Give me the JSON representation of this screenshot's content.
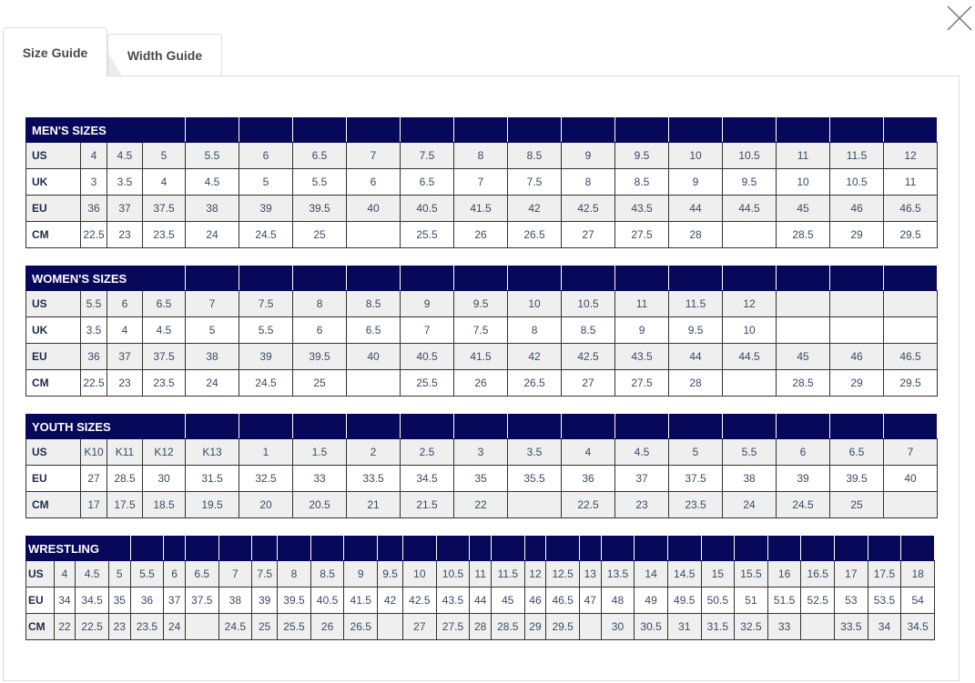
{
  "tabs": [
    {
      "label": "Size Guide",
      "active": true
    },
    {
      "label": "Width Guide",
      "active": false
    }
  ],
  "colors": {
    "header": "#07085a",
    "row_alt": "#efefef"
  },
  "icons": {
    "close": "close-icon"
  },
  "tables": [
    {
      "id": "mens",
      "title": "MEN'S SIZES",
      "rows": [
        {
          "label": "US",
          "values": [
            "4",
            "4.5",
            "5",
            "5.5",
            "6",
            "6.5",
            "7",
            "7.5",
            "8",
            "8.5",
            "9",
            "9.5",
            "10",
            "10.5",
            "11",
            "11.5",
            "12"
          ]
        },
        {
          "label": "UK",
          "values": [
            "3",
            "3.5",
            "4",
            "4.5",
            "5",
            "5.5",
            "6",
            "6.5",
            "7",
            "7.5",
            "8",
            "8.5",
            "9",
            "9.5",
            "10",
            "10.5",
            "11"
          ]
        },
        {
          "label": "EU",
          "values": [
            "36",
            "37",
            "37.5",
            "38",
            "39",
            "39.5",
            "40",
            "40.5",
            "41.5",
            "42",
            "42.5",
            "43.5",
            "44",
            "44.5",
            "45",
            "46",
            "46.5"
          ]
        },
        {
          "label": "CM",
          "values": [
            "22.5",
            "23",
            "23.5",
            "24",
            "24.5",
            "25",
            "",
            "25.5",
            "26",
            "26.5",
            "27",
            "27.5",
            "28",
            "",
            "28.5",
            "29",
            "29.5"
          ]
        }
      ]
    },
    {
      "id": "womens",
      "title": "WOMEN'S SIZES",
      "rows": [
        {
          "label": "US",
          "values": [
            "5.5",
            "6",
            "6.5",
            "7",
            "7.5",
            "8",
            "8.5",
            "9",
            "9.5",
            "10",
            "10.5",
            "11",
            "11.5",
            "12",
            "",
            "",
            ""
          ]
        },
        {
          "label": "UK",
          "values": [
            "3.5",
            "4",
            "4.5",
            "5",
            "5.5",
            "6",
            "6.5",
            "7",
            "7.5",
            "8",
            "8.5",
            "9",
            "9.5",
            "10",
            "",
            "",
            ""
          ]
        },
        {
          "label": "EU",
          "values": [
            "36",
            "37",
            "37.5",
            "38",
            "39",
            "39.5",
            "40",
            "40.5",
            "41.5",
            "42",
            "42.5",
            "43.5",
            "44",
            "44.5",
            "45",
            "46",
            "46.5"
          ]
        },
        {
          "label": "CM",
          "values": [
            "22.5",
            "23",
            "23.5",
            "24",
            "24.5",
            "25",
            "",
            "25.5",
            "26",
            "26.5",
            "27",
            "27.5",
            "28",
            "",
            "28.5",
            "29",
            "29.5"
          ]
        }
      ]
    },
    {
      "id": "youth",
      "title": "YOUTH SIZES",
      "rows": [
        {
          "label": "US",
          "values": [
            "K10",
            "K11",
            "K12",
            "K13",
            "1",
            "1.5",
            "2",
            "2.5",
            "3",
            "3.5",
            "4",
            "4.5",
            "5",
            "5.5",
            "6",
            "6.5",
            "7"
          ]
        },
        {
          "label": "EU",
          "values": [
            "27",
            "28.5",
            "30",
            "31.5",
            "32.5",
            "33",
            "33.5",
            "34.5",
            "35",
            "35.5",
            "36",
            "37",
            "37.5",
            "38",
            "39",
            "39.5",
            "40"
          ]
        },
        {
          "label": "CM",
          "values": [
            "17",
            "17.5",
            "18.5",
            "19.5",
            "20",
            "20.5",
            "21",
            "21.5",
            "22",
            "",
            "22.5",
            "23",
            "23.5",
            "24",
            "24.5",
            "25",
            ""
          ]
        }
      ]
    },
    {
      "id": "wrestling",
      "title": "WRESTLING",
      "rows": [
        {
          "label": "US",
          "values": [
            "4",
            "4.5",
            "5",
            "5.5",
            "6",
            "6.5",
            "7",
            "7.5",
            "8",
            "8.5",
            "9",
            "9.5",
            "10",
            "10.5",
            "11",
            "11.5",
            "12",
            "12.5",
            "13",
            "13.5",
            "14",
            "14.5",
            "15",
            "15.5",
            "16",
            "16.5",
            "17",
            "17.5",
            "18"
          ]
        },
        {
          "label": "EU",
          "values": [
            "34",
            "34.5",
            "35",
            "36",
            "37",
            "37.5",
            "38",
            "39",
            "39.5",
            "40.5",
            "41.5",
            "42",
            "42.5",
            "43.5",
            "44",
            "45",
            "46",
            "46.5",
            "47",
            "48",
            "49",
            "49.5",
            "50.5",
            "51",
            "51.5",
            "52.5",
            "53",
            "53.5",
            "54"
          ]
        },
        {
          "label": "CM",
          "values": [
            "22",
            "22.5",
            "23",
            "23.5",
            "24",
            "",
            "24.5",
            "25",
            "25.5",
            "26",
            "26.5",
            "",
            "27",
            "27.5",
            "28",
            "28.5",
            "29",
            "29.5",
            "",
            "30",
            "30.5",
            "31",
            "31.5",
            "32.5",
            "33",
            "",
            "33.5",
            "34",
            "34.5"
          ]
        }
      ]
    }
  ]
}
